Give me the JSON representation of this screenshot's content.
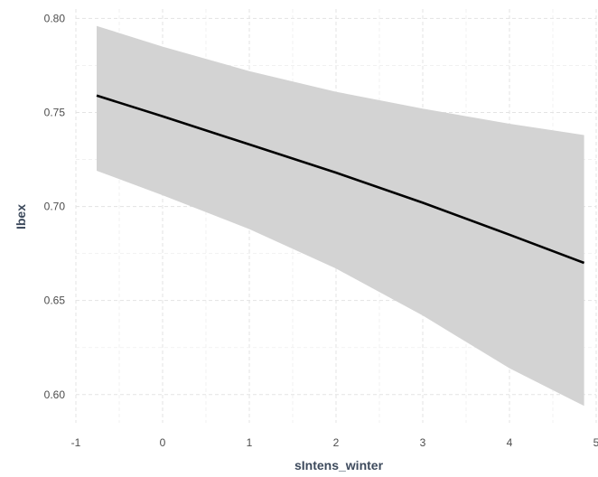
{
  "chart_data": {
    "type": "line",
    "title": "",
    "xlabel": "sIntens_winter",
    "ylabel": "Ibex",
    "xlim": [
      -1,
      5
    ],
    "ylim": [
      0.585,
      0.805
    ],
    "x_ticks": [
      -1,
      0,
      1,
      2,
      3,
      4,
      5
    ],
    "x_tick_labels": [
      "-1",
      "0",
      "1",
      "2",
      "3",
      "4",
      "5"
    ],
    "y_ticks": [
      0.6,
      0.65,
      0.7,
      0.75,
      0.8
    ],
    "y_tick_labels": [
      "0.60",
      "0.65",
      "0.70",
      "0.75",
      "0.80"
    ],
    "grid": true,
    "legend": "none",
    "series": [
      {
        "x": [
          -0.76,
          0.0,
          1.0,
          2.0,
          3.0,
          4.0,
          4.86
        ],
        "y": [
          0.759,
          0.748,
          0.733,
          0.718,
          0.702,
          0.685,
          0.67
        ],
        "lower": [
          0.719,
          0.706,
          0.688,
          0.667,
          0.642,
          0.614,
          0.594
        ],
        "upper": [
          0.796,
          0.785,
          0.772,
          0.761,
          0.752,
          0.744,
          0.738
        ]
      }
    ],
    "colors": {
      "line": "#000000",
      "band": "#d3d3d3"
    }
  }
}
